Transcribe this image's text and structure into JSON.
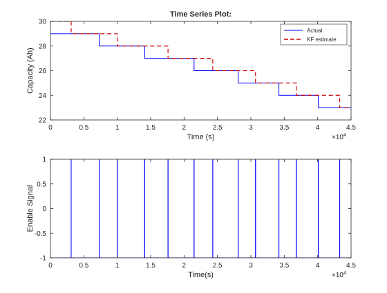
{
  "chart_data": [
    {
      "type": "line",
      "title": "Time Series Plot:",
      "xlabel": "Time (s)",
      "ylabel": "Capacity (Ah)",
      "xlim": [
        0,
        45000
      ],
      "ylim": [
        22,
        30
      ],
      "x_ticks": [
        0,
        5000,
        10000,
        15000,
        20000,
        25000,
        30000,
        35000,
        40000,
        45000
      ],
      "x_tick_labels": [
        "0",
        "0.5",
        "1",
        "1.5",
        "2",
        "2.5",
        "3",
        "3.5",
        "4",
        "4.5"
      ],
      "y_ticks": [
        22,
        24,
        26,
        28,
        30
      ],
      "y_tick_labels": [
        "22",
        "24",
        "26",
        "28",
        "30"
      ],
      "x_exponent_base": "×10",
      "x_exponent_power": "4",
      "grid": false,
      "legend_position": "top-right",
      "series": [
        {
          "name": "Actual",
          "color": "#0000ff",
          "style": "solid",
          "x": [
            0,
            7300,
            7300,
            14100,
            14100,
            21500,
            21500,
            28100,
            28100,
            34200,
            34200,
            40100,
            40100,
            45000
          ],
          "y": [
            29,
            29,
            28,
            28,
            27,
            27,
            26,
            26,
            25,
            25,
            24,
            24,
            23,
            23
          ]
        },
        {
          "name": "KF estimate",
          "color": "#cc0000",
          "style": "dashed",
          "x": [
            0,
            3100,
            3100,
            10000,
            10000,
            17600,
            17600,
            24300,
            24300,
            30700,
            30700,
            36800,
            36800,
            43300,
            43300,
            45000
          ],
          "y": [
            30,
            30,
            29,
            29,
            28,
            28,
            27,
            27,
            26,
            26,
            25,
            25,
            24,
            24,
            23,
            23
          ]
        }
      ]
    },
    {
      "type": "line",
      "title": "",
      "xlabel": "Time(s)",
      "ylabel": "Enable Signal",
      "xlim": [
        0,
        45000
      ],
      "ylim": [
        -1,
        1
      ],
      "x_ticks": [
        0,
        5000,
        10000,
        15000,
        20000,
        25000,
        30000,
        35000,
        40000,
        45000
      ],
      "x_tick_labels": [
        "0",
        "0.5",
        "1",
        "1.5",
        "2",
        "2.5",
        "3",
        "3.5",
        "4",
        "4.5"
      ],
      "y_ticks": [
        -1,
        -0.5,
        0,
        0.5,
        1
      ],
      "y_tick_labels": [
        "-1",
        "-0.5",
        "0",
        "0.5",
        "1"
      ],
      "x_exponent_base": "×10",
      "x_exponent_power": "4",
      "grid": false,
      "series": [
        {
          "color": "#0000ff",
          "style": "solid",
          "spike_times": [
            3100,
            7300,
            10000,
            14100,
            17600,
            21500,
            24300,
            28100,
            30700,
            34200,
            36800,
            40100,
            43300
          ],
          "baseline": -1,
          "peak": 1
        }
      ]
    }
  ]
}
